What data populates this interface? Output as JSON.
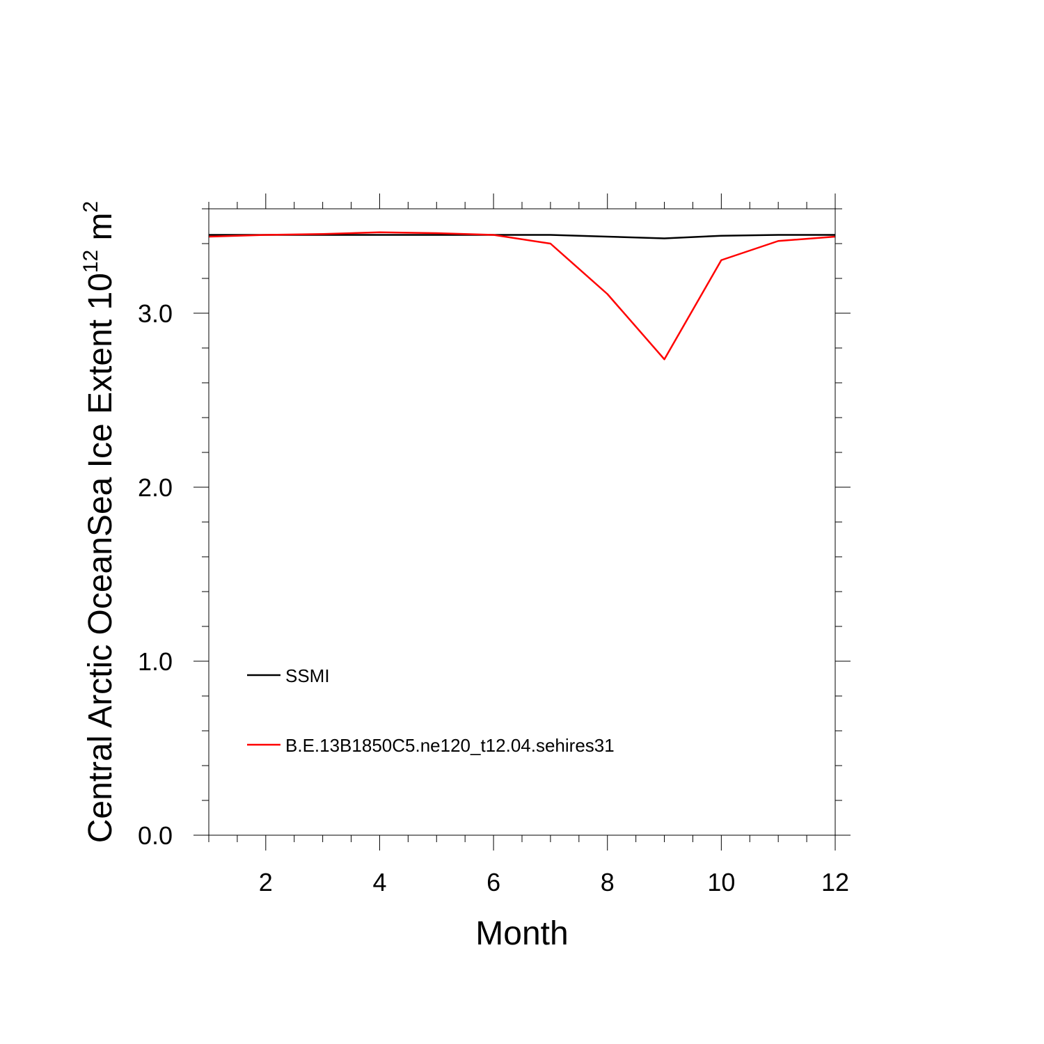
{
  "chart_data": {
    "type": "line",
    "title": "",
    "xlabel": "Month",
    "ylabel": {
      "prefix": "Central Arctic OceanSea Ice Extent 10",
      "exp1": "12",
      "unit": " m",
      "exp2": "2"
    },
    "xlim": [
      1,
      12
    ],
    "ylim": [
      0,
      3.6
    ],
    "x_ticks": [
      2,
      4,
      6,
      8,
      10,
      12
    ],
    "x_tick_labels": [
      "2",
      "4",
      "6",
      "8",
      "10",
      "12"
    ],
    "y_ticks": [
      0,
      1,
      2,
      3
    ],
    "y_tick_labels": [
      "0.0",
      "1.0",
      "2.0",
      "3.0"
    ],
    "grid": false,
    "legend_position": "lower-left inside",
    "x": [
      1,
      2,
      3,
      4,
      5,
      6,
      7,
      8,
      9,
      10,
      11,
      12
    ],
    "series": [
      {
        "name": "SSMI",
        "color": "#000000",
        "values": [
          3.45,
          3.45,
          3.45,
          3.45,
          3.45,
          3.45,
          3.45,
          3.44,
          3.43,
          3.445,
          3.45,
          3.45
        ]
      },
      {
        "name": "B.E.13B1850C5.ne120_t12.04.sehires31",
        "color": "#ff0000",
        "values": [
          3.44,
          3.45,
          3.455,
          3.465,
          3.46,
          3.45,
          3.4,
          3.11,
          2.735,
          3.305,
          3.415,
          3.44
        ]
      }
    ]
  }
}
